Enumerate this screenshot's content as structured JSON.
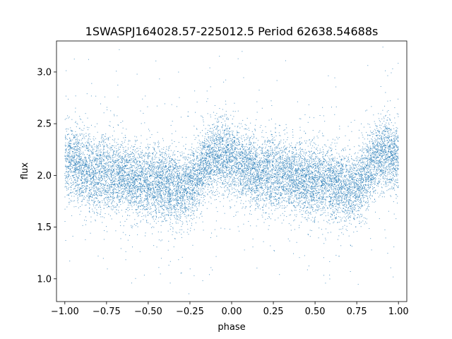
{
  "chart_data": {
    "type": "scatter",
    "title": "1SWASPJ164028.57-225012.5 Period 62638.54688s",
    "xlabel": "phase",
    "ylabel": "flux",
    "xlim": [
      -1.05,
      1.05
    ],
    "ylim": [
      0.78,
      3.3
    ],
    "x_ticks": [
      -1.0,
      -0.75,
      -0.5,
      -0.25,
      0.0,
      0.25,
      0.5,
      0.75,
      1.0
    ],
    "x_tick_labels": [
      "−1.00",
      "−0.75",
      "−0.50",
      "−0.25",
      "0.00",
      "0.25",
      "0.50",
      "0.75",
      "1.00"
    ],
    "y_ticks": [
      1.0,
      1.5,
      2.0,
      2.5,
      3.0
    ],
    "y_tick_labels": [
      "1.0",
      "1.5",
      "2.0",
      "2.5",
      "3.0"
    ],
    "grid": false,
    "legend": "none",
    "marker_color": "#1f77b4",
    "series": [
      {
        "x_range": [
          -1.0,
          1.0
        ],
        "periodic_in_phase": 1.0,
        "profile_phase": [
          0.0,
          0.05,
          0.1,
          0.15,
          0.2,
          0.25,
          0.3,
          0.35,
          0.4,
          0.45,
          0.5,
          0.55,
          0.6,
          0.65,
          0.7,
          0.75,
          0.8,
          0.85,
          0.9,
          0.95,
          1.0
        ],
        "profile_flux": [
          2.15,
          2.12,
          2.07,
          2.03,
          2.02,
          2.01,
          2.0,
          1.99,
          1.97,
          1.95,
          1.94,
          1.93,
          1.91,
          1.89,
          1.87,
          1.9,
          2.0,
          2.13,
          2.2,
          2.2,
          2.15
        ],
        "scatter_sigma": 0.17,
        "point_count": 14000
      }
    ]
  }
}
